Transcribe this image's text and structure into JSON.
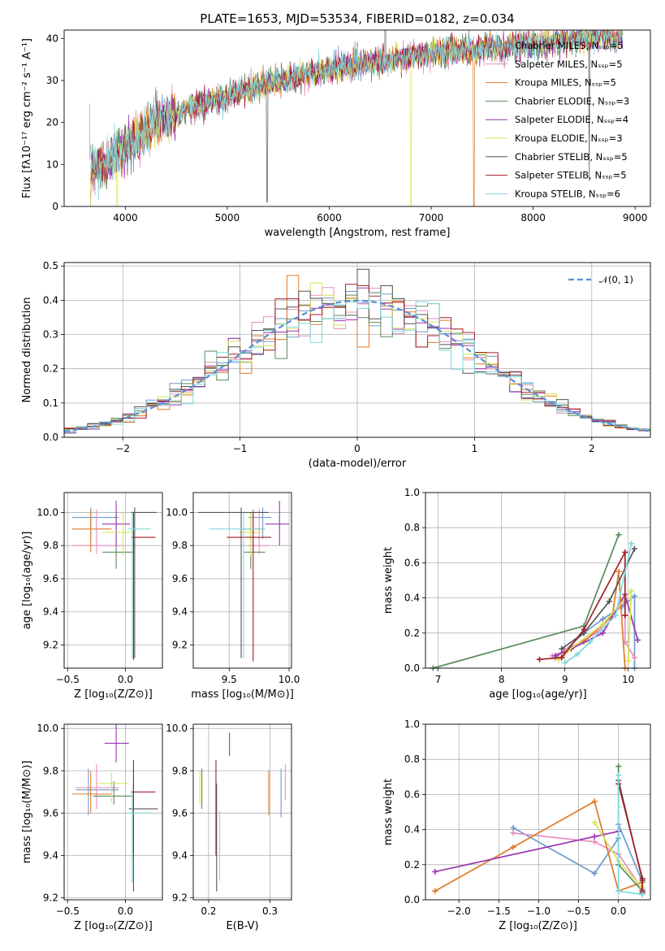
{
  "title": "PLATE=1653, MJD=53534, FIBERID=0182, z=0.034",
  "colors": {
    "Chabrier MILES": "#6f9ac9",
    "Salpeter MILES": "#e68fbf",
    "Kroupa MILES": "#de7a28",
    "Chabrier ELODIE": "#5a8a5a",
    "Salpeter ELODIE": "#9a35b3",
    "Kroupa ELODIE": "#d9e35a",
    "Chabrier STELIB": "#555555",
    "Salpeter STELIB": "#a31e2a",
    "Kroupa STELIB": "#7fd9dd",
    "normal": "#5b8fd6"
  },
  "chart_data": [
    {
      "name": "spectrum",
      "type": "line",
      "xlabel": "wavelength [Angstrom, rest frame]",
      "ylabel": "Flux [fλ10⁻¹⁷ erg cm⁻² s⁻¹ A⁻¹]",
      "xlim": [
        3400,
        9150
      ],
      "ylim": [
        0,
        42
      ],
      "xticks": [
        "4000",
        "5000",
        "6000",
        "7000",
        "8000",
        "9000"
      ],
      "yticks": [
        "0",
        "10",
        "20",
        "30",
        "40"
      ],
      "x": [
        3650,
        3800,
        3900,
        4000,
        4150,
        4300,
        4500,
        4700,
        4900,
        5100,
        5300,
        5500,
        5700,
        5900,
        6100,
        6300,
        6500,
        6700,
        6900,
        7100,
        7300,
        7500,
        7700,
        7900,
        8100,
        8300,
        8500,
        8700,
        8900
      ],
      "y": [
        9,
        10,
        12,
        14,
        17,
        20,
        22,
        24,
        25.5,
        27,
        28.5,
        30,
        31,
        32,
        33,
        34,
        35,
        35.5,
        36,
        36.5,
        37,
        37.5,
        38,
        38.5,
        39,
        39.5,
        40,
        40.5,
        40
      ],
      "legend": [
        "Chabrier MILES, Nₛₛₚ=5",
        "Salpeter MILES, Nₛₛₚ=5",
        "Kroupa MILES, Nₛₛₚ=5",
        "Chabrier ELODIE, Nₛₛₚ=3",
        "Salpeter ELODIE, Nₛₛₚ=4",
        "Kroupa ELODIE, Nₛₛₚ=3",
        "Chabrier STELIB, Nₛₛₚ=5",
        "Salpeter STELIB, Nₛₛₚ=5",
        "Kroupa STELIB, Nₛₛₚ=6"
      ]
    },
    {
      "name": "residual_histogram",
      "type": "bar",
      "xlabel": "(data-model)/error",
      "ylabel": "Normed distribution",
      "xlim": [
        -2.5,
        2.5
      ],
      "ylim": [
        0,
        0.51
      ],
      "xticks": [
        "−2",
        "−1",
        "0",
        "1",
        "2"
      ],
      "yticks": [
        "0.0",
        "0.1",
        "0.2",
        "0.3",
        "0.4",
        "0.5"
      ],
      "legend": [
        "𝒩(0, 1)"
      ],
      "grid": true
    },
    {
      "name": "age_vs_Z",
      "type": "scatter",
      "xlabel": "Z [log₁₀(Z/Z⊙)]",
      "ylabel": "age  [log₁₀(age/yr)]",
      "xlim": [
        -0.53,
        0.32
      ],
      "ylim": [
        9.06,
        10.12
      ],
      "xticks": [
        "−0.5",
        "0.0"
      ],
      "yticks": [
        "9.2",
        "9.4",
        "9.6",
        "9.8",
        "10.0"
      ],
      "grid": true
    },
    {
      "name": "age_vs_mass",
      "type": "scatter",
      "xlabel": "mass [log₁₀(M/M⊙)]",
      "xlim": [
        9.2,
        10.02
      ],
      "ylim": [
        9.06,
        10.12
      ],
      "xticks": [
        "9.5",
        "10.0"
      ],
      "yticks": [
        "9.2",
        "9.4",
        "9.6",
        "9.8",
        "10.0"
      ],
      "grid": true
    },
    {
      "name": "massweight_vs_age",
      "type": "line",
      "xlabel": "age  [log₁₀(age/yr)]",
      "ylabel": "mass weight",
      "xlim": [
        6.8,
        10.35
      ],
      "ylim": [
        0,
        1
      ],
      "xticks": [
        "7",
        "8",
        "9",
        "10"
      ],
      "yticks": [
        "0.0",
        "0.2",
        "0.4",
        "0.6",
        "0.8",
        "1.0"
      ],
      "grid": true
    },
    {
      "name": "mass_vs_Z",
      "type": "scatter",
      "xlabel": "Z [log₁₀(Z/Z⊙)]",
      "ylabel": "mass [log₁₀(M/M⊙)]",
      "xlim": [
        -0.53,
        0.32
      ],
      "ylim": [
        9.19,
        10.02
      ],
      "xticks": [
        "−0.5",
        "0.0"
      ],
      "yticks": [
        "9.2",
        "9.4",
        "9.6",
        "9.8",
        "10.0"
      ],
      "grid": true
    },
    {
      "name": "mass_vs_ebv",
      "type": "scatter",
      "xlabel": "E(B-V)",
      "xlim": [
        0.175,
        0.335
      ],
      "ylim": [
        9.19,
        10.02
      ],
      "xticks": [
        "0.2",
        "0.3"
      ],
      "yticks": [
        "9.2",
        "9.4",
        "9.6",
        "9.8",
        "10.0"
      ],
      "grid": true
    },
    {
      "name": "massweight_vs_Z",
      "type": "line",
      "xlabel": "Z [log₁₀(Z/Z⊙)]",
      "ylabel": "mass weight",
      "xlim": [
        -2.42,
        0.4
      ],
      "ylim": [
        0,
        1
      ],
      "xticks": [
        "−2.0",
        "−1.5",
        "−1.0",
        "−0.5",
        "0.0"
      ],
      "yticks": [
        "0.0",
        "0.2",
        "0.4",
        "0.6",
        "0.8",
        "1.0"
      ],
      "grid": true
    }
  ]
}
